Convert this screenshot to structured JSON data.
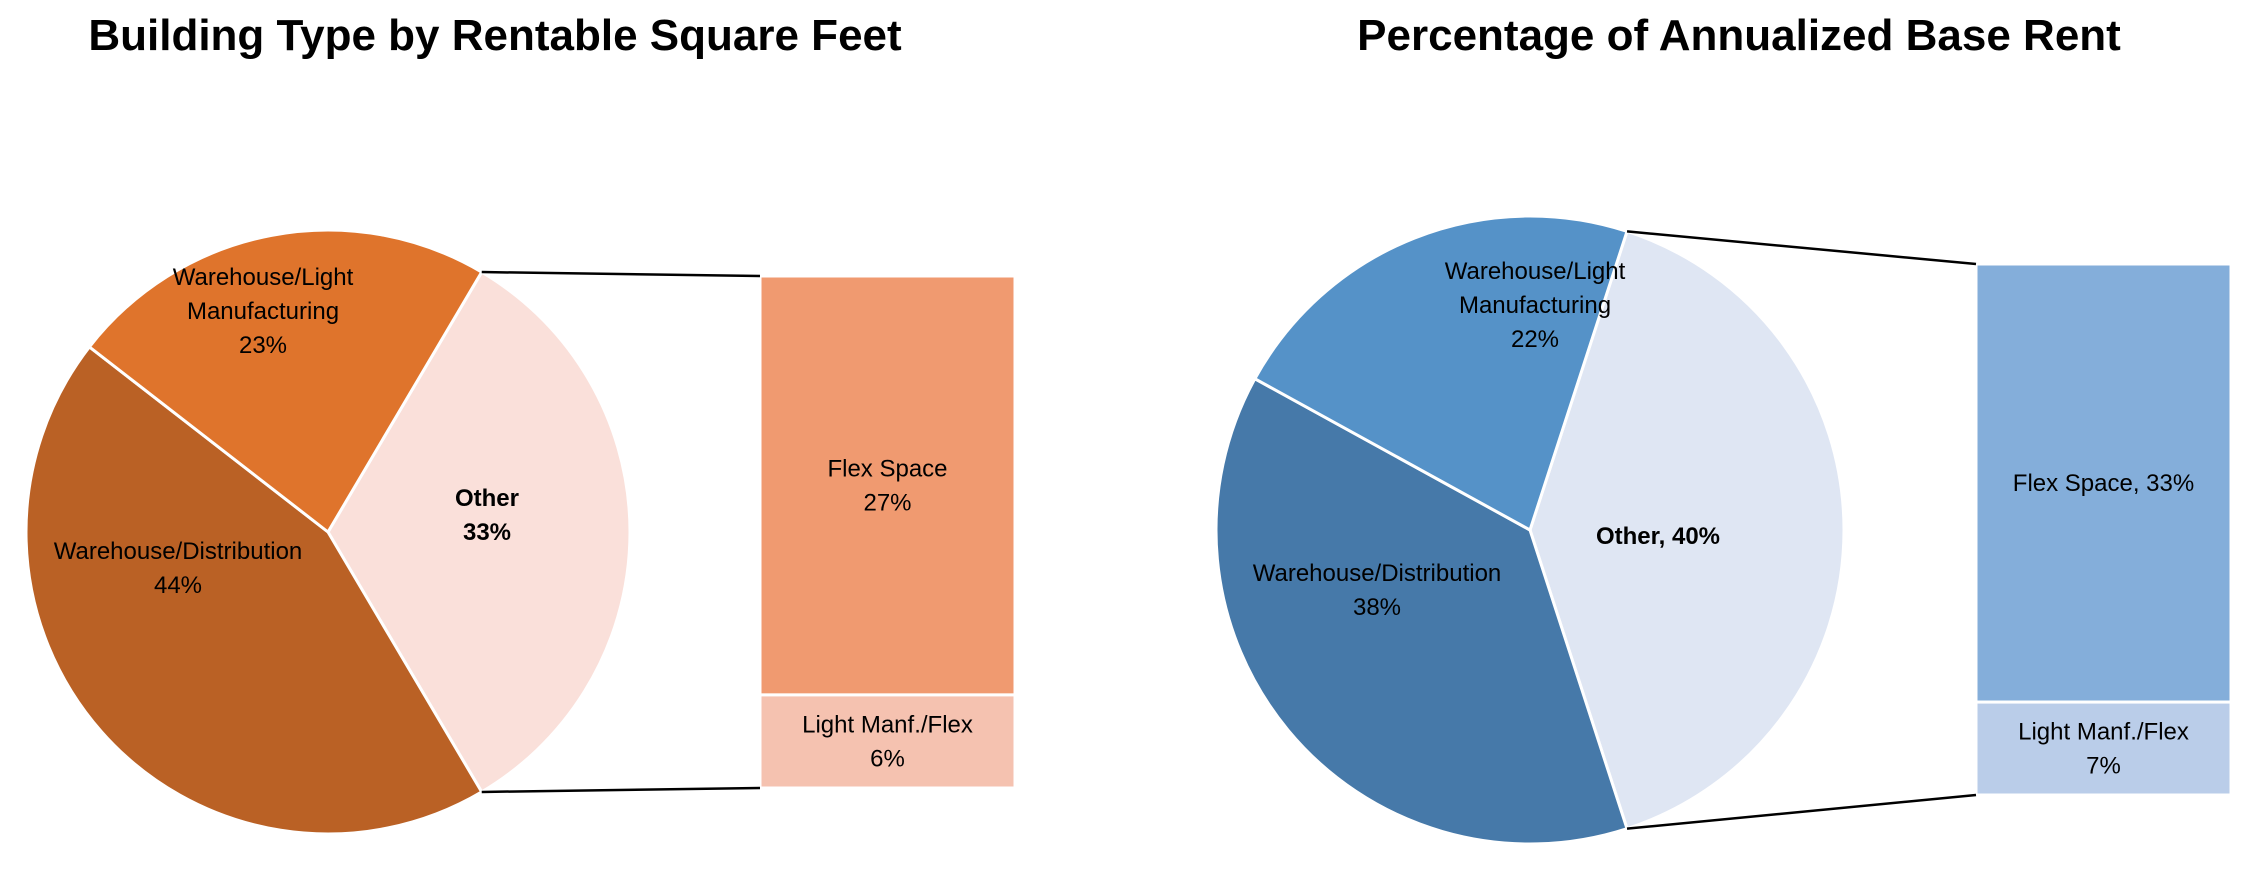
{
  "chart_data": [
    {
      "type": "pie",
      "subtype": "bar-of-pie",
      "title": "Building Type by Rentable Square Feet",
      "slices": [
        {
          "label": "Other",
          "display": [
            "Other",
            "33%"
          ],
          "value": 33,
          "color": "#FAE0DA",
          "bold": true
        },
        {
          "label": "Warehouse/Distribution",
          "display": [
            "Warehouse/Distribution",
            "44%"
          ],
          "value": 44,
          "color": "#BA6125",
          "bold": false
        },
        {
          "label": "Warehouse/Light Manufacturing",
          "display": [
            "Warehouse/Light",
            "Manufacturing",
            "23%"
          ],
          "value": 23,
          "color": "#DF742C",
          "bold": false
        }
      ],
      "breakdown": [
        {
          "label": "Flex Space",
          "display": [
            "Flex Space",
            "27%"
          ],
          "value": 27,
          "color": "#F09A70"
        },
        {
          "label": "Light Manf./Flex",
          "display": [
            "Light Manf./Flex",
            "6%"
          ],
          "value": 6,
          "color": "#F5C2B0"
        }
      ]
    },
    {
      "type": "pie",
      "subtype": "bar-of-pie",
      "title": "Percentage of Annualized Base Rent",
      "slices": [
        {
          "label": "Other",
          "display": [
            "Other, 40%"
          ],
          "value": 40,
          "color": "#DFE6F3",
          "bold": true
        },
        {
          "label": "Warehouse/Distribution",
          "display": [
            "Warehouse/Distribution",
            "38%"
          ],
          "value": 38,
          "color": "#4679A9",
          "bold": false
        },
        {
          "label": "Warehouse/Light Manufacturing",
          "display": [
            "Warehouse/Light",
            "Manufacturing",
            "22%"
          ],
          "value": 22,
          "color": "#5592C8",
          "bold": false
        }
      ],
      "breakdown": [
        {
          "label": "Flex Space",
          "display": [
            "Flex Space, 33%"
          ],
          "value": 33,
          "color": "#84AEDA"
        },
        {
          "label": "Light Manf./Flex",
          "display": [
            "Light Manf./Flex",
            "7%"
          ],
          "value": 7,
          "color": "#BACDE9"
        }
      ]
    }
  ]
}
